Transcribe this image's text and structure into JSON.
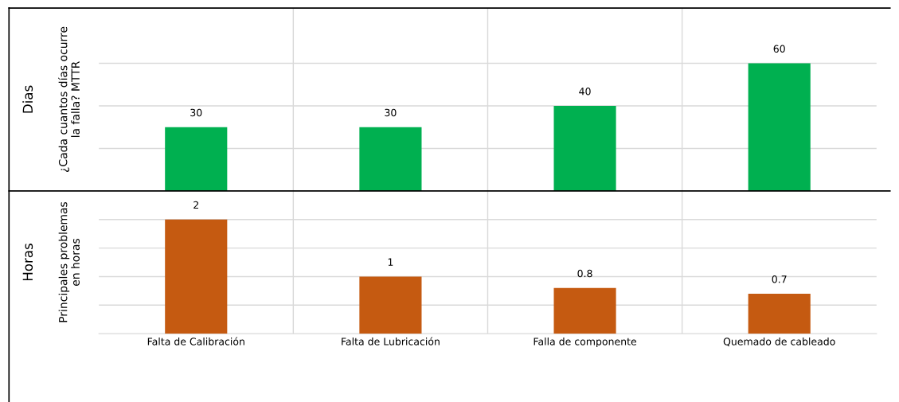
{
  "chart_data": [
    {
      "type": "bar",
      "ylabel": "¿Cada cuantos días ocurre la falla? MTTR",
      "annotations": [
        "Dias"
      ],
      "categories": [
        null,
        null,
        null,
        null
      ],
      "values": [
        30,
        30,
        40,
        60
      ],
      "color": "#00b050",
      "data_labels": true,
      "ylim": [
        0,
        86
      ],
      "yticks": [
        {
          "value": 20,
          "label": null
        },
        {
          "value": 40,
          "label": null
        },
        {
          "value": 60,
          "label": null
        }
      ],
      "grid": "y",
      "tick_labels": false
    },
    {
      "type": "bar",
      "ylabel": "Principales problemas en horas",
      "annotations": [
        "Horas"
      ],
      "categories": [
        "Falta de Calibración",
        "Falta de Lubricación",
        "Falla de componente",
        "Quemado de cableado"
      ],
      "values": [
        2,
        1,
        0.8,
        0.7
      ],
      "color": "#c55a11",
      "data_labels": true,
      "ylim": [
        0,
        2.5
      ],
      "yticks": [
        {
          "value": 0.5,
          "label": null
        },
        {
          "value": 1,
          "label": null
        },
        {
          "value": 1.5,
          "label": null
        },
        {
          "value": 2,
          "label": null
        }
      ],
      "grid": "y",
      "tick_labels": "x"
    }
  ]
}
